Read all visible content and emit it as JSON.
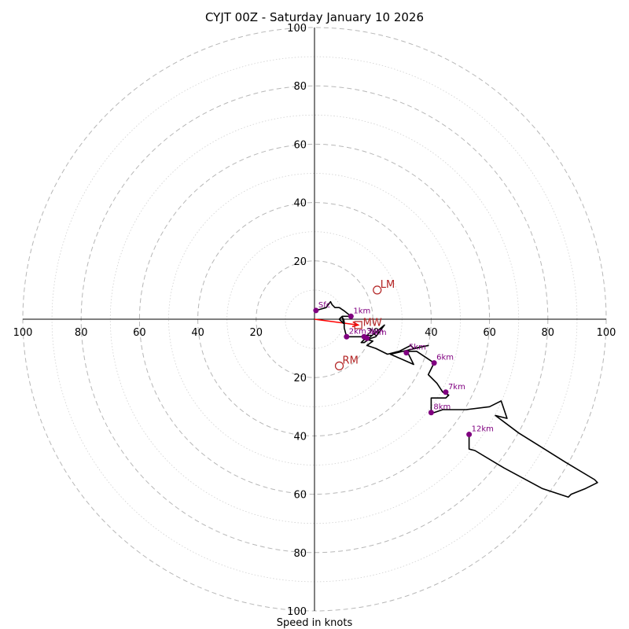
{
  "chart_data": {
    "type": "hodograph",
    "title": "CYJT 00Z - Saturday January 10 2026",
    "xlabel": "Speed in knots",
    "range": 100,
    "ring_step": 10,
    "tick_labels": {
      "left": [
        "100",
        "80",
        "60",
        "40",
        "20"
      ],
      "right": [
        "20",
        "40",
        "60",
        "80",
        "100"
      ],
      "top": [
        "100",
        "80",
        "60",
        "40",
        "20"
      ],
      "bottom": [
        "20",
        "40",
        "60",
        "80",
        "100"
      ]
    },
    "tick_values": [
      20,
      40,
      60,
      80,
      100
    ],
    "hodograph_line": [
      [
        0.5,
        3
      ],
      [
        4,
        4
      ],
      [
        5.5,
        6
      ],
      [
        6,
        5
      ],
      [
        7,
        4
      ],
      [
        8.5,
        4
      ],
      [
        10,
        3
      ],
      [
        12.5,
        1
      ],
      [
        11,
        1
      ],
      [
        9.5,
        1
      ],
      [
        10,
        -1.5
      ],
      [
        8.5,
        0
      ],
      [
        9.3,
        0.8
      ],
      [
        10,
        0
      ],
      [
        10.2,
        -1
      ],
      [
        10.2,
        -3
      ],
      [
        11,
        -6
      ],
      [
        13,
        -6
      ],
      [
        16,
        -6
      ],
      [
        18,
        -5.5
      ],
      [
        17,
        -7
      ],
      [
        16,
        -8
      ],
      [
        17,
        -8
      ],
      [
        18.5,
        -7
      ],
      [
        19.5,
        -6.5
      ],
      [
        21,
        -6
      ],
      [
        24,
        -2
      ],
      [
        18,
        -7
      ],
      [
        20,
        -7.5
      ],
      [
        18,
        -9
      ],
      [
        21,
        -10
      ],
      [
        25,
        -12
      ],
      [
        29,
        -11
      ],
      [
        33,
        -9
      ],
      [
        34,
        -10
      ],
      [
        39,
        -9
      ],
      [
        26,
        -12
      ],
      [
        34,
        -15.5
      ],
      [
        32,
        -11.5
      ],
      [
        32,
        -11
      ],
      [
        35,
        -11
      ],
      [
        41,
        -15
      ],
      [
        40,
        -17
      ],
      [
        39,
        -19
      ],
      [
        42,
        -22
      ],
      [
        44,
        -25
      ],
      [
        46,
        -26
      ],
      [
        45,
        -27
      ],
      [
        40,
        -27
      ],
      [
        40,
        -32
      ],
      [
        41,
        -32
      ],
      [
        44,
        -31
      ],
      [
        52,
        -31
      ],
      [
        60,
        -30
      ],
      [
        64,
        -28
      ],
      [
        66,
        -34
      ],
      [
        62,
        -33
      ],
      [
        70,
        -39
      ],
      [
        78,
        -44
      ],
      [
        86,
        -49
      ],
      [
        96,
        -55
      ],
      [
        97,
        -56
      ],
      [
        93,
        -58
      ],
      [
        88,
        -60
      ],
      [
        87,
        -61
      ],
      [
        78,
        -58
      ],
      [
        65,
        -51
      ],
      [
        55,
        -45
      ],
      [
        53,
        -44.5
      ],
      [
        53,
        -39.5
      ]
    ],
    "height_markers": [
      {
        "label": "Sfc",
        "u": 0.5,
        "v": 3
      },
      {
        "label": "1km",
        "u": 12.5,
        "v": 1
      },
      {
        "label": "2km",
        "u": 11,
        "v": -6
      },
      {
        "label": "3km",
        "u": 17,
        "v": -6
      },
      {
        "label": "4km",
        "u": 18,
        "v": -6.5
      },
      {
        "label": "5km",
        "u": 31.5,
        "v": -11.5
      },
      {
        "label": "6km",
        "u": 41,
        "v": -15
      },
      {
        "label": "7km",
        "u": 45,
        "v": -25
      },
      {
        "label": "8km",
        "u": 40,
        "v": -32
      },
      {
        "label": "12km",
        "u": 53,
        "v": -39.5
      }
    ],
    "storm_motion": [
      {
        "label": "LM",
        "u": 21.5,
        "v": 10
      },
      {
        "label": "RM",
        "u": 8.5,
        "v": -16
      },
      {
        "label": "MW",
        "u": 15,
        "v": -2
      }
    ],
    "shear_vector": {
      "from": [
        0,
        0
      ],
      "to": [
        15,
        -2
      ]
    },
    "colors": {
      "ring": "#b7b7b7",
      "line": "#000000",
      "marker": "#800080",
      "storm": "#b22222",
      "shear": "#ff0000"
    }
  }
}
